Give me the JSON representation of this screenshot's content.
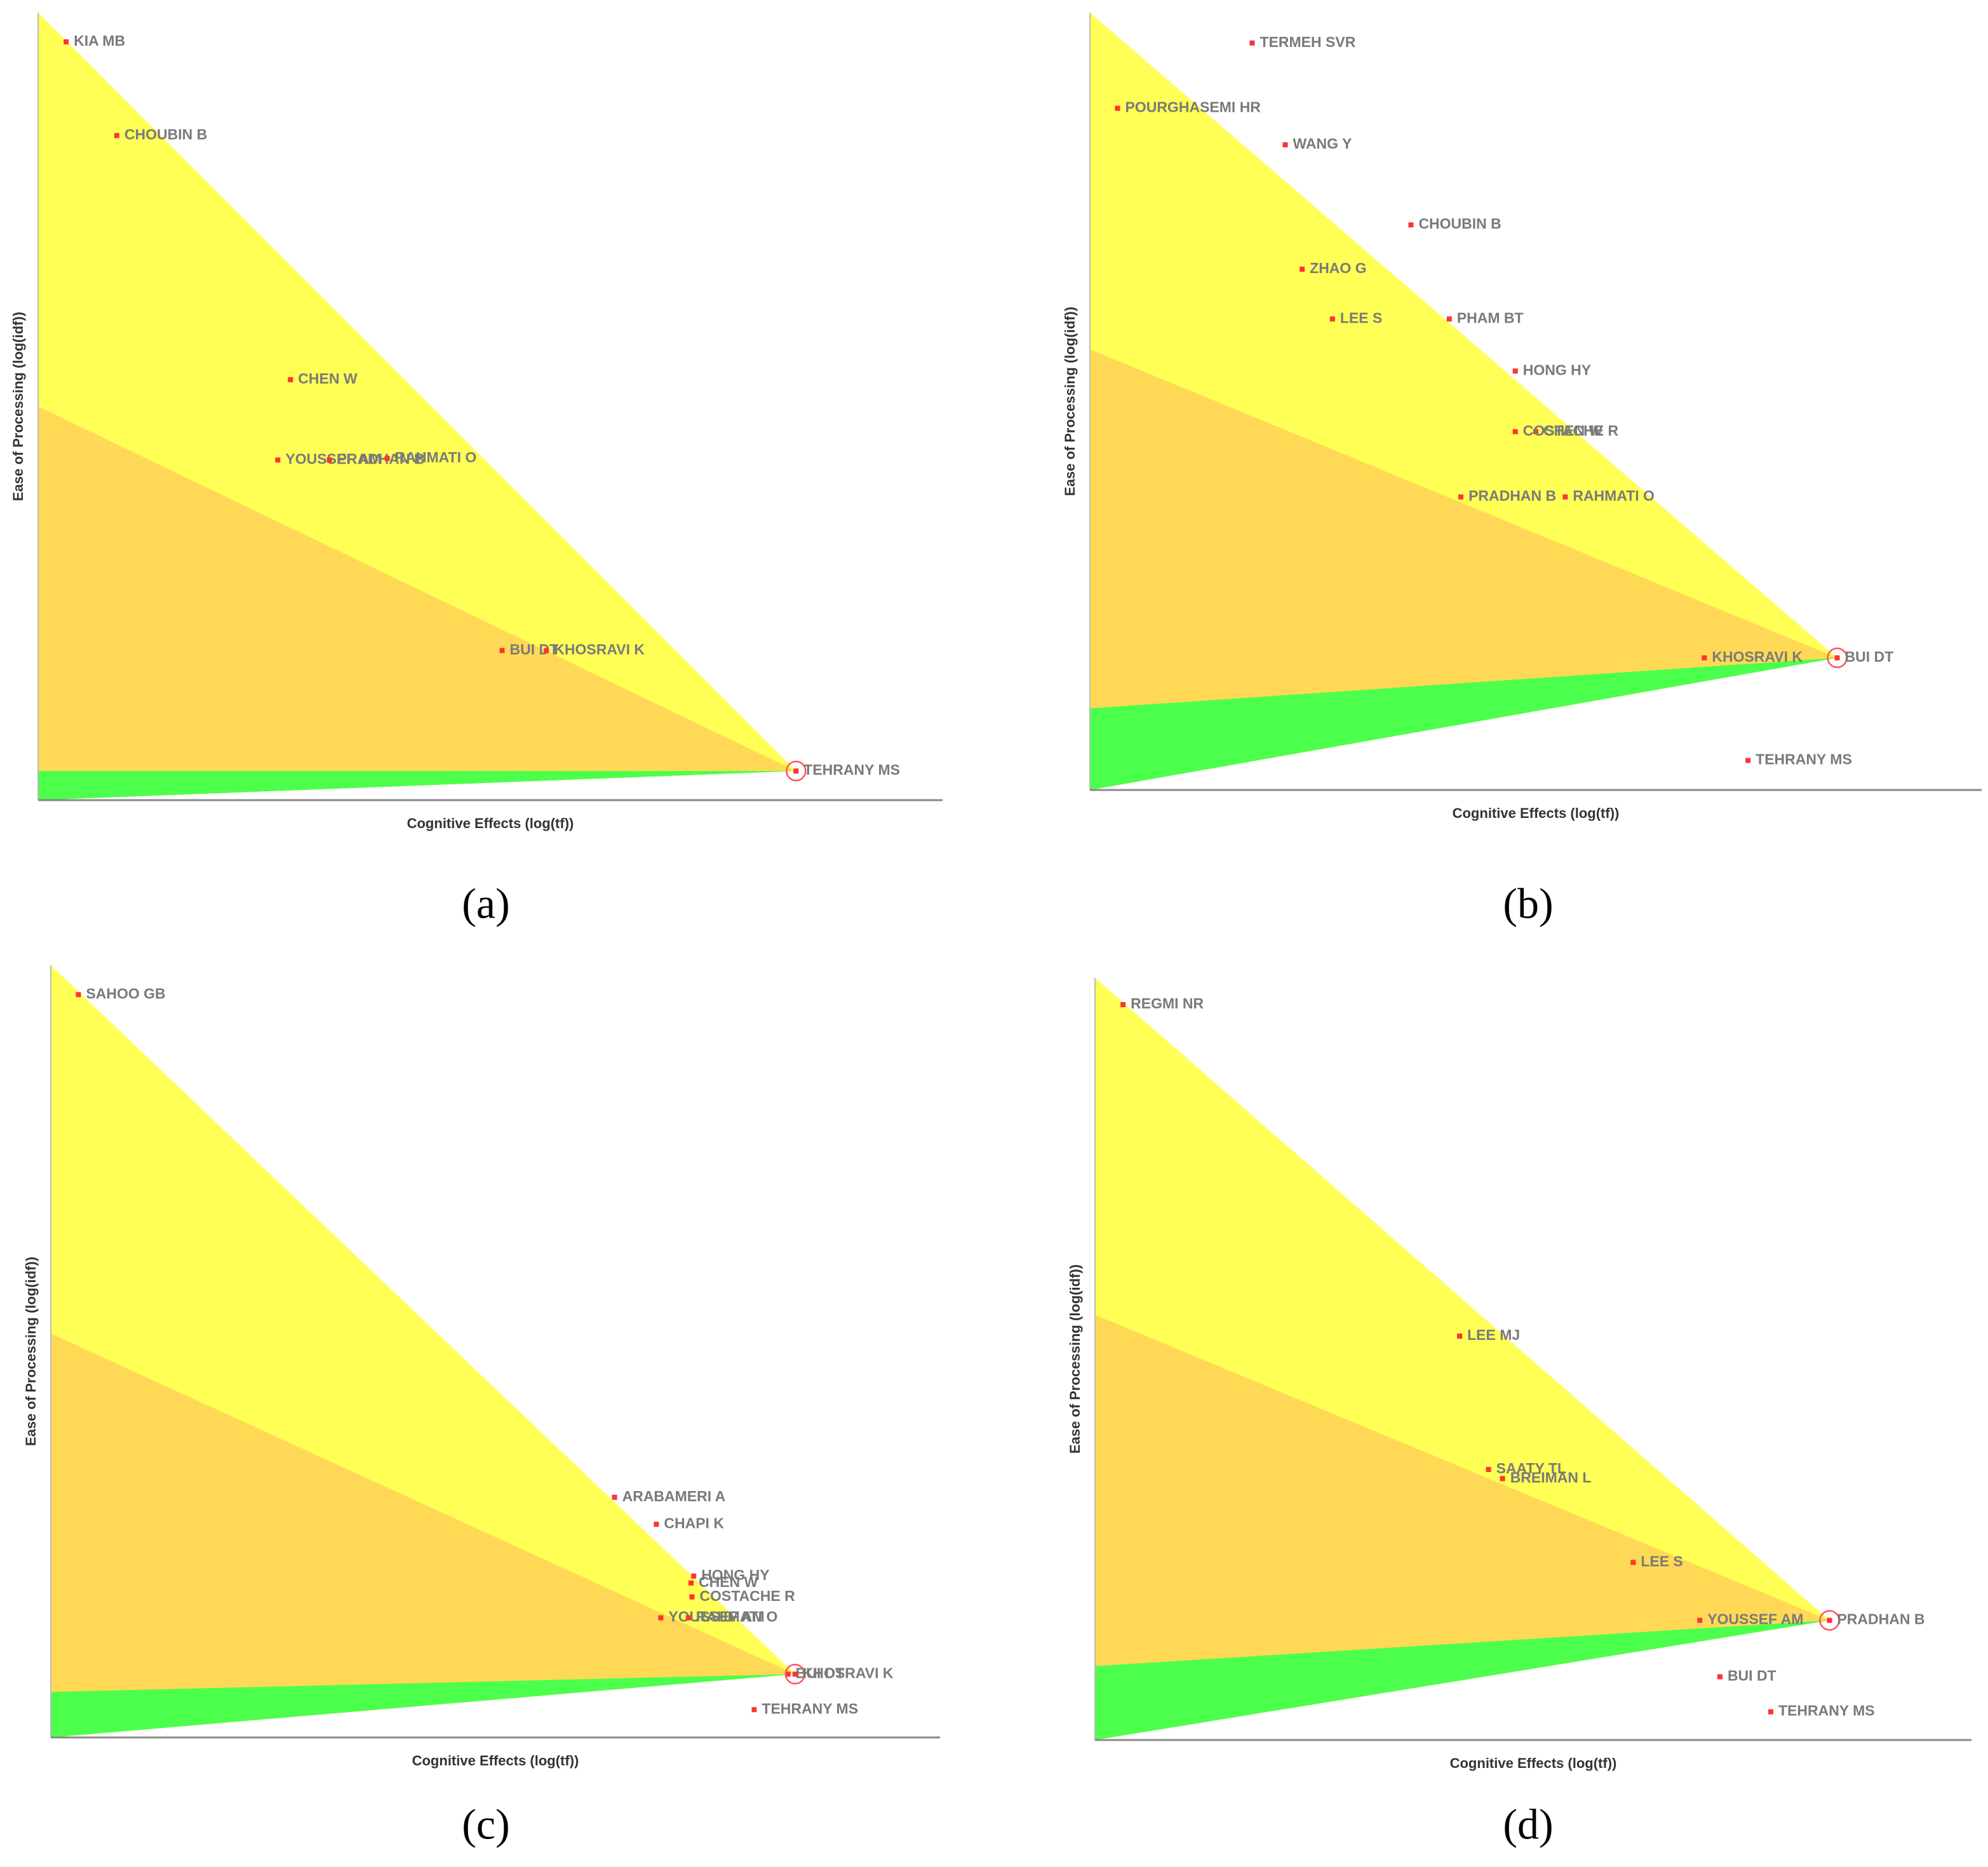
{
  "chart_data": [
    {
      "type": "scatter",
      "caption": "(a)",
      "xlabel": "Cognitive Effects (log(tf))",
      "ylabel": "Ease of Processing (log(idf))",
      "xlim": [
        0,
        1
      ],
      "ylim": [
        0,
        1
      ],
      "point_color": "#ff3333",
      "label_color": "#7a7a7a",
      "focus": 8,
      "regions": [
        {
          "color": "#ffff55",
          "left": 1
        },
        {
          "color": "#ffd955",
          "left": 0.5
        },
        {
          "color": "#4cff4c",
          "left": 0.037
        }
      ],
      "labels": [
        "KIA MB",
        "CHOUBIN B",
        "CHEN W",
        "YOUSSEF AM",
        "PRADHAN B",
        "RAHMATI O",
        "BUI DT",
        "KHOSRAVI K",
        "TEHRANY MS"
      ],
      "x": [
        0.031,
        0.087,
        0.279,
        0.265,
        0.322,
        0.386,
        0.513,
        0.562,
        0.838
      ],
      "y": [
        0.963,
        0.844,
        0.534,
        0.432,
        0.432,
        0.434,
        0.19,
        0.19,
        0.037
      ]
    },
    {
      "type": "scatter",
      "caption": "(b)",
      "xlabel": "Cognitive Effects (log(tf))",
      "ylabel": "Ease of Processing (log(idf))",
      "xlim": [
        0,
        1
      ],
      "ylim": [
        0,
        1
      ],
      "point_color": "#ff3333",
      "label_color": "#7a7a7a",
      "focus": 13,
      "regions": [
        {
          "color": "#ffff55",
          "left": 1
        },
        {
          "color": "#ffd955",
          "left": 0.567
        },
        {
          "color": "#4cff4c",
          "left": 0.105
        }
      ],
      "labels": [
        "TERMEH SVR",
        "POURGHASEMI HR",
        "WANG Y",
        "CHOUBIN B",
        "ZHAO G",
        "LEE S",
        "PHAM BT",
        "HONG HY",
        "CHEN W",
        "COSTACHE R",
        "PRADHAN B",
        "RAHMATI O",
        "KHOSRAVI K",
        "BUI DT",
        "TEHRANY MS"
      ],
      "x": [
        0.182,
        0.031,
        0.219,
        0.36,
        0.238,
        0.272,
        0.403,
        0.477,
        0.5,
        0.477,
        0.416,
        0.533,
        0.689,
        0.838,
        0.738
      ],
      "y": [
        0.961,
        0.877,
        0.83,
        0.727,
        0.67,
        0.606,
        0.606,
        0.539,
        0.461,
        0.461,
        0.377,
        0.377,
        0.17,
        0.17,
        0.038
      ]
    },
    {
      "type": "scatter",
      "caption": "(c)",
      "xlabel": "Cognitive Effects (log(tf))",
      "ylabel": "Ease of Processing (log(idf))",
      "xlim": [
        0,
        1
      ],
      "ylim": [
        0,
        1
      ],
      "point_color": "#ff3333",
      "label_color": "#7a7a7a",
      "focus": 9,
      "regions": [
        {
          "color": "#ffff55",
          "left": 1
        },
        {
          "color": "#ffd955",
          "left": 0.523
        },
        {
          "color": "#4cff4c",
          "left": 0.059
        }
      ],
      "labels": [
        "SAHOO GB",
        "ARABAMERI A",
        "CHAPI K",
        "HONG HY",
        "CHEN W",
        "COSTACHE R",
        "YOUSSEF AM",
        "RAHMATI O",
        "BUI DT",
        "KHOSRAVI K",
        "TEHRANY MS"
      ],
      "x": [
        0.031,
        0.634,
        0.681,
        0.723,
        0.72,
        0.721,
        0.686,
        0.717,
        0.829,
        0.837,
        0.791
      ],
      "y": [
        0.962,
        0.311,
        0.276,
        0.209,
        0.2,
        0.182,
        0.155,
        0.155,
        0.082,
        0.082,
        0.036
      ]
    },
    {
      "type": "scatter",
      "caption": "(d)",
      "xlabel": "Cognitive Effects (log(tf))",
      "ylabel": "Ease of Processing (log(idf))",
      "xlim": [
        0,
        1
      ],
      "ylim": [
        0,
        1
      ],
      "point_color": "#ff3333",
      "label_color": "#7a7a7a",
      "focus": 6,
      "regions": [
        {
          "color": "#ffff55",
          "left": 1
        },
        {
          "color": "#ffd955",
          "left": 0.558
        },
        {
          "color": "#4cff4c",
          "left": 0.097
        }
      ],
      "labels": [
        "REGMI NR",
        "LEE MJ",
        "SAATY TL",
        "BREIMAN L",
        "LEE S",
        "YOUSSEF AM",
        "PRADHAN B",
        "BUI DT",
        "TEHRANY MS"
      ],
      "x": [
        0.032,
        0.416,
        0.449,
        0.465,
        0.614,
        0.69,
        0.838,
        0.713,
        0.771
      ],
      "y": [
        0.965,
        0.53,
        0.355,
        0.343,
        0.233,
        0.157,
        0.157,
        0.083,
        0.037
      ]
    }
  ]
}
